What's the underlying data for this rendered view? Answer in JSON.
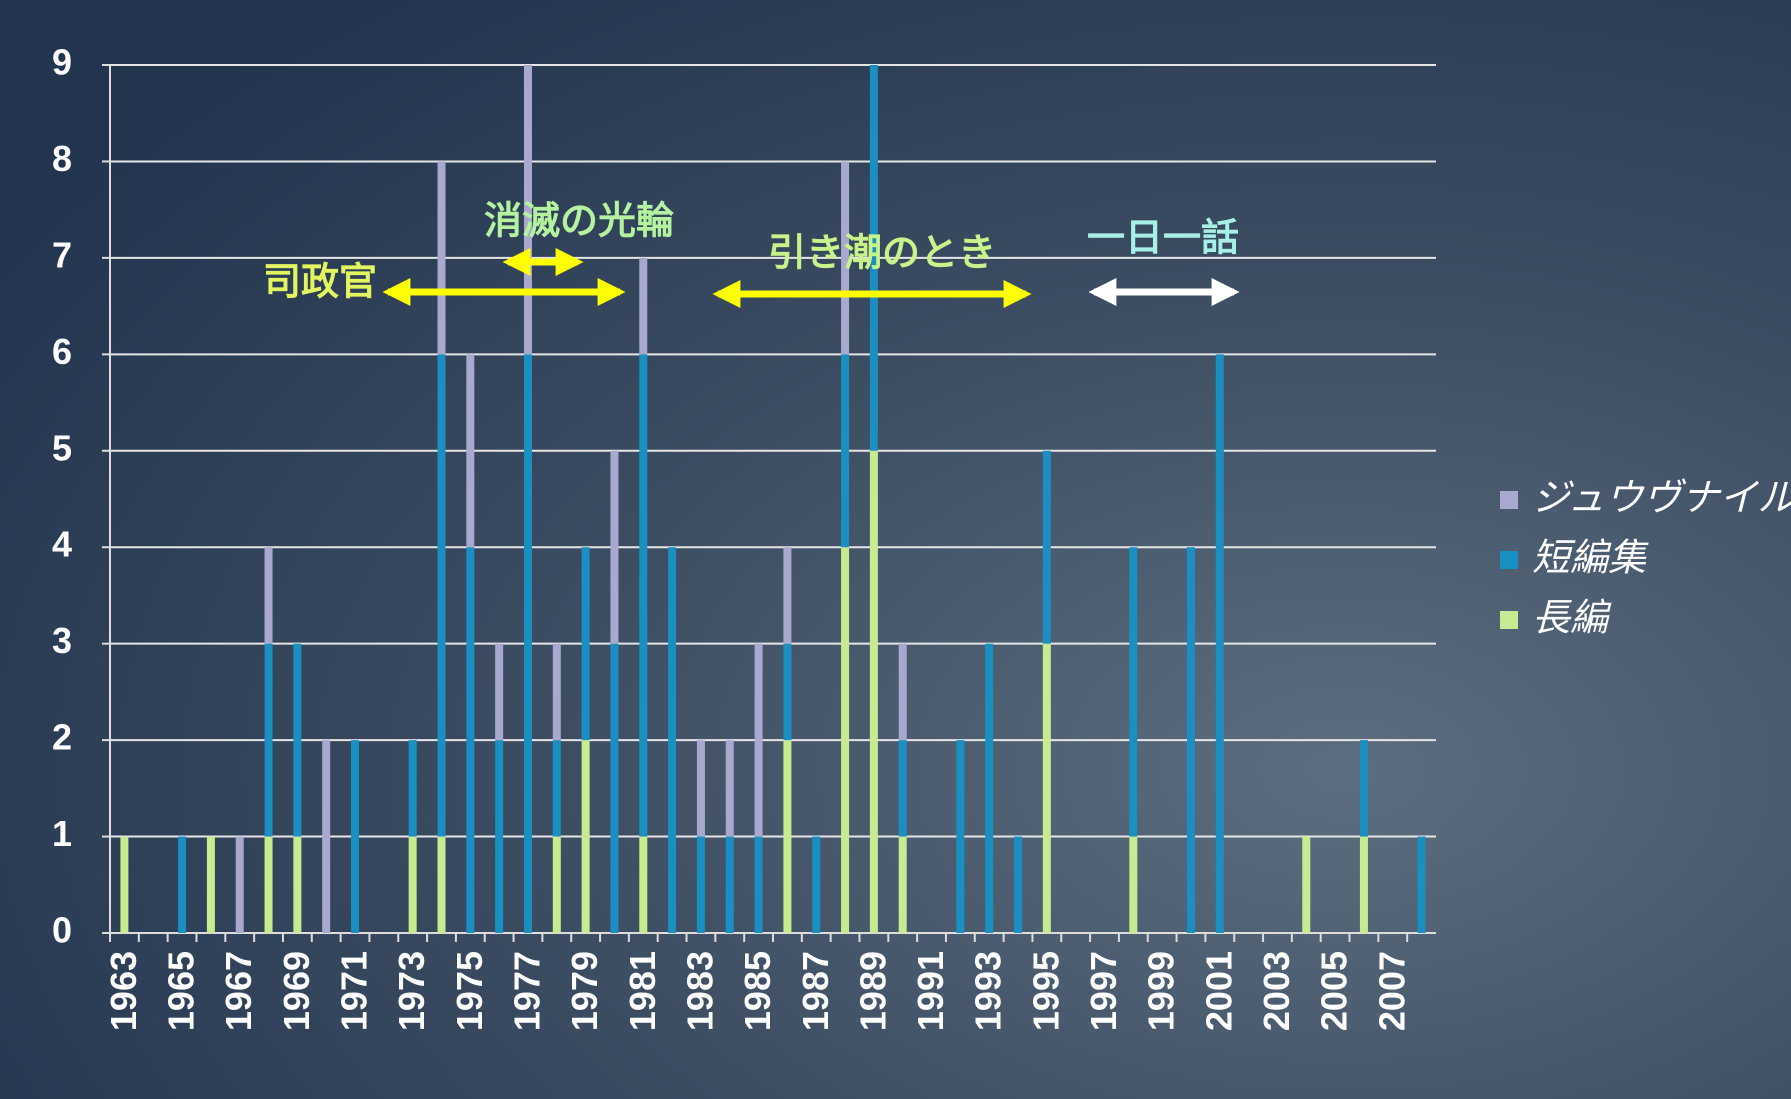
{
  "chart_data": {
    "type": "bar",
    "stacked": true,
    "categories": [
      "1963",
      null,
      "1965",
      null,
      "1967",
      null,
      "1969",
      null,
      "1971",
      null,
      "1973",
      null,
      "1975",
      null,
      "1977",
      null,
      "1979",
      null,
      "1981",
      null,
      "1983",
      null,
      "1985",
      null,
      "1987",
      null,
      "1989",
      null,
      "1991",
      null,
      "1993",
      null,
      "1995",
      null,
      "1997",
      null,
      "1999",
      null,
      "2001",
      null,
      "2003",
      null,
      "2005",
      null,
      "2007",
      null
    ],
    "series": [
      {
        "name": "長編",
        "color": "#c8eb92",
        "values": [
          1,
          0,
          0,
          1,
          0,
          1,
          1,
          0,
          0,
          0,
          1,
          1,
          0,
          0,
          0,
          1,
          2,
          0,
          1,
          0,
          0,
          0,
          0,
          2,
          0,
          4,
          5,
          1,
          0,
          0,
          0,
          0,
          3,
          0,
          0,
          1,
          0,
          0,
          0,
          0,
          0,
          1,
          0,
          1,
          0,
          0
        ]
      },
      {
        "name": "短編集",
        "color": "#1a8fc2",
        "values": [
          0,
          0,
          1,
          0,
          0,
          2,
          2,
          0,
          2,
          0,
          1,
          5,
          4,
          2,
          6,
          1,
          2,
          3,
          5,
          4,
          1,
          1,
          1,
          1,
          1,
          2,
          4,
          1,
          0,
          2,
          3,
          1,
          2,
          0,
          0,
          3,
          0,
          4,
          6,
          0,
          0,
          0,
          0,
          1,
          0,
          1
        ]
      },
      {
        "name": "ジュウヴナイル",
        "color": "#a9a9cf",
        "values": [
          0,
          0,
          0,
          0,
          1,
          1,
          0,
          2,
          0,
          0,
          0,
          2,
          2,
          1,
          3,
          1,
          0,
          2,
          1,
          0,
          1,
          1,
          2,
          1,
          0,
          2,
          0,
          1,
          0,
          0,
          0,
          0,
          0,
          0,
          0,
          0,
          0,
          0,
          0,
          0,
          0,
          0,
          0,
          0,
          0,
          0
        ]
      }
    ],
    "ylim": [
      0,
      9
    ],
    "yticks": [
      0,
      1,
      2,
      3,
      4,
      5,
      6,
      7,
      8,
      9
    ],
    "grid": true,
    "legend": "right",
    "annotations": [
      {
        "text": "司政官",
        "color": "#e3f55e",
        "arrow_color": "#ffff00"
      },
      {
        "text": "消滅の光輪",
        "color": "#b4f2a0",
        "arrow_color": "#ffff00"
      },
      {
        "text": "引き潮のとき",
        "color": "#c8f28a",
        "arrow_color": "#ffff00"
      },
      {
        "text": "一日一話",
        "color": "#a8f0e6",
        "arrow_color": "#ffffff"
      }
    ]
  }
}
